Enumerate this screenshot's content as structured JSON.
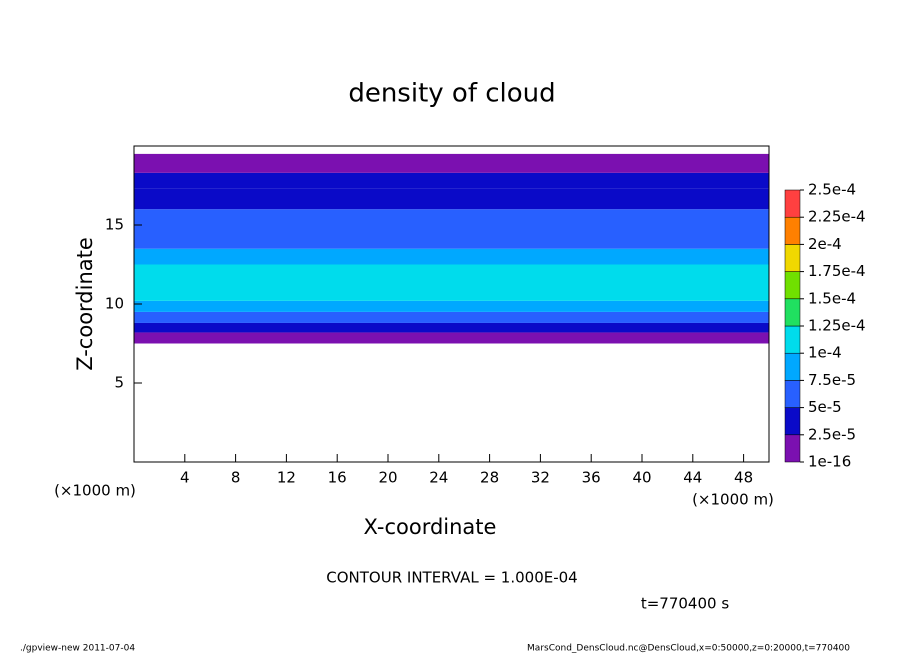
{
  "chart_data": {
    "type": "contour",
    "title": "density of cloud",
    "x_label": "X-coordinate",
    "y_label": "Z-coordinate",
    "x_unit": "(×1000 m)",
    "y_unit": "(×1000 m)",
    "xlim": [
      0,
      50
    ],
    "ylim": [
      0,
      20
    ],
    "xticks": [
      4,
      8,
      12,
      16,
      20,
      24,
      28,
      32,
      36,
      40,
      44,
      48
    ],
    "yticks": [
      5,
      10,
      15
    ],
    "layers": {
      "z_edges": [
        7.5,
        8.2,
        8.8,
        9.5,
        10.2,
        12.5,
        13.5,
        16,
        17.3,
        18.3,
        19.5
      ],
      "values": [
        1e-16,
        2.5e-05,
        5e-05,
        7.5e-05,
        0.00011,
        8e-05,
        6e-05,
        4e-05,
        2.5e-05,
        1e-16
      ]
    },
    "colorbar": {
      "levels": [
        {
          "value": 1e-16,
          "label": "1e-16"
        },
        {
          "value": 2.5e-05,
          "label": "2.5e-5"
        },
        {
          "value": 5e-05,
          "label": "5e-5"
        },
        {
          "value": 7.5e-05,
          "label": "7.5e-5"
        },
        {
          "value": 0.0001,
          "label": "1e-4"
        },
        {
          "value": 0.000125,
          "label": "1.25e-4"
        },
        {
          "value": 0.00015,
          "label": "1.5e-4"
        },
        {
          "value": 0.000175,
          "label": "1.75e-4"
        },
        {
          "value": 0.0002,
          "label": "2e-4"
        },
        {
          "value": 0.000225,
          "label": "2.25e-4"
        },
        {
          "value": 0.00025,
          "label": "2.5e-4"
        }
      ],
      "colors": [
        "#7b10b0",
        "#0a0ac8",
        "#2860ff",
        "#00a8ff",
        "#00dcec",
        "#20e060",
        "#70e000",
        "#f0d800",
        "#ff8000",
        "#ff4040"
      ]
    },
    "contour_note": "CONTOUR INTERVAL = 1.000E-04",
    "time_note": "t=770400 s",
    "footer_left": "./gpview-new  2011-07-04",
    "footer_right": "MarsCond_DensCloud.nc@DensCloud,x=0:50000,z=0:20000,t=770400"
  }
}
